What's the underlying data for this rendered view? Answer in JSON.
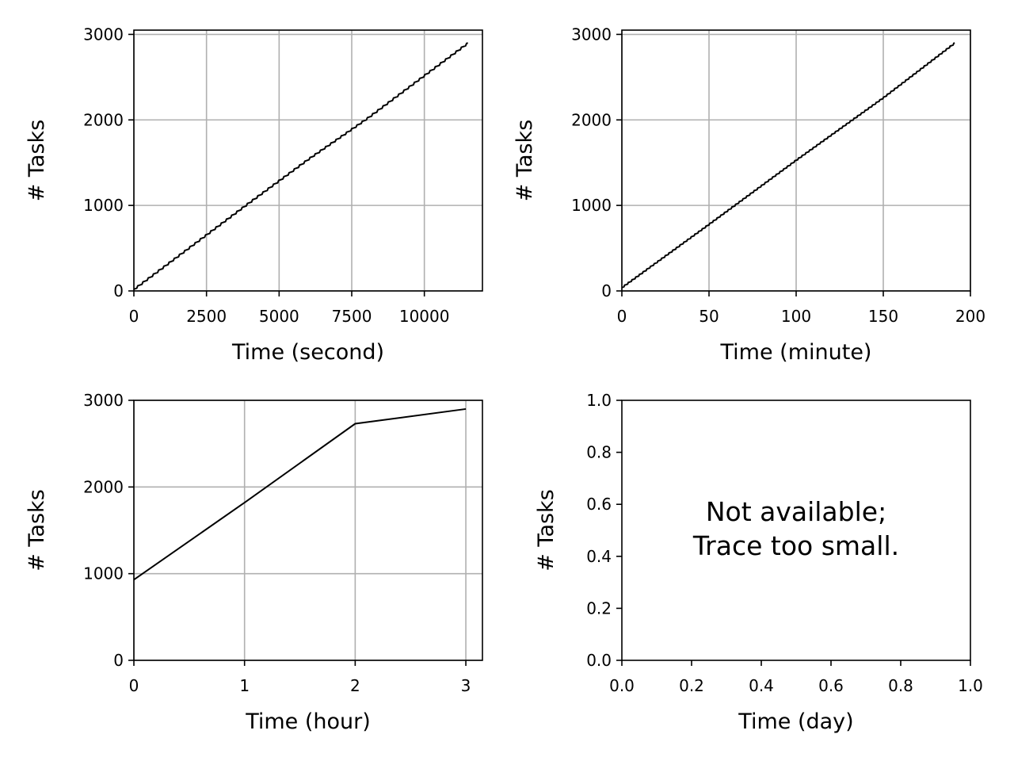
{
  "chart_data": [
    {
      "type": "line",
      "xlabel": "Time (second)",
      "ylabel": "# Tasks",
      "xlim": [
        0,
        12000
      ],
      "ylim": [
        0,
        3050
      ],
      "xticks": [
        0,
        2500,
        5000,
        7500,
        10000
      ],
      "yticks": [
        0,
        1000,
        2000,
        3000
      ],
      "grid": true,
      "stepped": true,
      "series": [
        {
          "x": [
            0,
            2000,
            4000,
            6000,
            8000,
            10000,
            11500
          ],
          "y": [
            20,
            530,
            1040,
            1540,
            2010,
            2520,
            2900
          ]
        }
      ]
    },
    {
      "type": "line",
      "xlabel": "Time (minute)",
      "ylabel": "# Tasks",
      "xlim": [
        0,
        200
      ],
      "ylim": [
        0,
        3050
      ],
      "xticks": [
        0,
        50,
        100,
        150,
        200
      ],
      "yticks": [
        0,
        1000,
        2000,
        3000
      ],
      "grid": true,
      "stepped": true,
      "series": [
        {
          "x": [
            0,
            50,
            100,
            150,
            191
          ],
          "y": [
            40,
            780,
            1530,
            2260,
            2900
          ]
        }
      ]
    },
    {
      "type": "line",
      "xlabel": "Time (hour)",
      "ylabel": "# Tasks",
      "xlim": [
        0,
        3.15
      ],
      "ylim": [
        0,
        3000
      ],
      "xticks": [
        0,
        1,
        2,
        3
      ],
      "yticks": [
        0,
        1000,
        2000,
        3000
      ],
      "grid": true,
      "stepped": false,
      "series": [
        {
          "x": [
            0,
            1,
            2,
            3
          ],
          "y": [
            930,
            1820,
            2730,
            2900
          ]
        }
      ]
    },
    {
      "type": "line",
      "xlabel": "Time (day)",
      "ylabel": "# Tasks",
      "xlim": [
        0,
        1
      ],
      "ylim": [
        0,
        1
      ],
      "xticks": [
        "0.0",
        "0.2",
        "0.4",
        "0.6",
        "0.8",
        "1.0"
      ],
      "yticks": [
        "0.0",
        "0.2",
        "0.4",
        "0.6",
        "0.8",
        "1.0"
      ],
      "grid": false,
      "annotation": [
        "Not available;",
        "Trace too small."
      ],
      "series": []
    }
  ]
}
